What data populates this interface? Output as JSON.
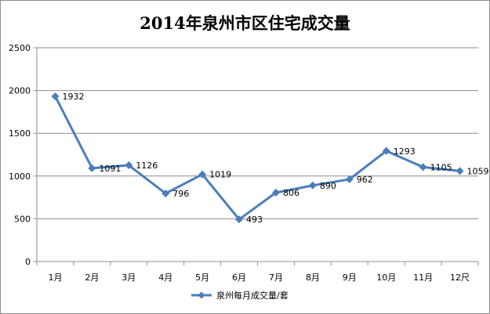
{
  "chart_data": {
    "type": "line",
    "title": "2014年泉州市区住宅成交量",
    "categories": [
      "1月",
      "2月",
      "3月",
      "4月",
      "5月",
      "6月",
      "7月",
      "8月",
      "9月",
      "10月",
      "11月",
      "12尺"
    ],
    "series": [
      {
        "name": "泉州每月成交量/套",
        "values": [
          1932,
          1091,
          1126,
          796,
          1019,
          493,
          806,
          890,
          962,
          1293,
          1105,
          1059
        ],
        "color": "#4a7ebb",
        "marker": "diamond"
      }
    ],
    "ylim": [
      0,
      2500
    ],
    "yticks": [
      0,
      500,
      1000,
      1500,
      2000,
      2500
    ],
    "ytick_labels": [
      "0",
      "500",
      "1000",
      "1500",
      "2000",
      "2500"
    ],
    "grid": true,
    "legend_position": "bottom",
    "xlabel": "",
    "ylabel": ""
  }
}
